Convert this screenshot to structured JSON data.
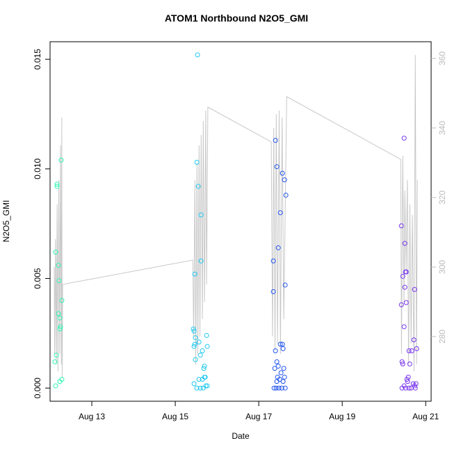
{
  "chart_data": {
    "type": "scatter",
    "title": "ATOM1 Northbound N2O5_GMI",
    "xlabel": "Date",
    "ylabel": "N2O5_GMI",
    "xlim": [
      12.0,
      21.13
    ],
    "xticks": [
      {
        "value": 13,
        "label": "Aug 13"
      },
      {
        "value": 15,
        "label": "Aug 15"
      },
      {
        "value": 17,
        "label": "Aug 17"
      },
      {
        "value": 19,
        "label": "Aug 19"
      },
      {
        "value": 21,
        "label": "Aug 21"
      }
    ],
    "ylim": [
      -0.0006,
      0.0158
    ],
    "yticks": [
      {
        "value": 0,
        "label": "0.000"
      },
      0.005,
      {
        "value": 0.01,
        "label": "0.010"
      },
      0.015
    ],
    "y2lim": [
      261.4,
      364.8
    ],
    "y2ticks": [
      280,
      300,
      320,
      340,
      360
    ],
    "series": [
      {
        "type": "line",
        "axis": "y2",
        "color": "#c8c8c8",
        "x": [
          12.1,
          12.11,
          12.13,
          12.15,
          12.17,
          12.19,
          12.21,
          12.23,
          12.25,
          12.27,
          12.28,
          12.29,
          12.3,
          15.42,
          15.44,
          15.47,
          15.49,
          15.52,
          15.54,
          15.57,
          15.59,
          15.62,
          15.65,
          15.67,
          15.7,
          15.73,
          15.75,
          15.78,
          17.3,
          17.33,
          17.36,
          17.39,
          17.42,
          17.45,
          17.49,
          17.52,
          17.56,
          17.6,
          17.67,
          20.4,
          20.42,
          20.45,
          20.48,
          20.5,
          20.53,
          20.56,
          20.59,
          20.62,
          20.65,
          20.68,
          20.72,
          20.75,
          20.78,
          20.8
        ],
        "values": [
          300,
          275,
          308,
          272,
          318,
          270,
          325,
          275,
          335,
          272,
          343,
          268,
          295,
          302,
          280,
          325,
          272,
          330,
          275,
          335,
          280,
          338,
          285,
          342,
          290,
          345,
          295,
          346,
          336,
          280,
          340,
          276,
          344,
          278,
          345,
          275,
          343,
          285,
          349,
          331,
          275,
          332,
          290,
          322,
          298,
          325,
          272,
          318,
          278,
          315,
          270,
          361,
          272,
          325
        ]
      },
      {
        "type": "points",
        "color": "#2ef5b4",
        "x": [
          12.133,
          12.117,
          12.15,
          12.133,
          12.167,
          12.167,
          12.2,
          12.217,
          12.2,
          12.233,
          12.25,
          12.233,
          12.283,
          12.267,
          12.283,
          12.233
        ],
        "values": [
          0.0001,
          0.0012,
          0.0015,
          0.0062,
          0.0093,
          0.0092,
          0.0056,
          0.0049,
          0.0034,
          0.0032,
          0.0028,
          0.0027,
          0.004,
          0.0104,
          0.0004,
          0.0003
        ]
      },
      {
        "type": "points",
        "color": "#1ec8f0",
        "x": [
          15.533,
          15.517,
          15.55,
          15.617,
          15.617,
          15.467,
          15.433,
          15.45,
          15.483,
          15.467,
          15.45,
          15.567,
          15.75,
          15.767,
          15.65,
          15.6,
          15.483,
          15.7,
          15.683,
          15.567,
          15.65,
          15.7,
          15.45,
          15.517,
          15.6,
          15.733,
          15.667,
          15.767,
          15.717
        ],
        "values": [
          0.0152,
          0.0103,
          0.0092,
          0.0079,
          0.0058,
          0.0052,
          0.0027,
          0.0026,
          0.0023,
          0.002,
          0.0019,
          0.0021,
          0.0024,
          0.0019,
          0.0017,
          0.0015,
          0.0013,
          0.001,
          0.0009,
          0.0004,
          0.0004,
          0.0005,
          0.0002,
          0,
          0,
          0.0001,
          0,
          0.0001,
          0.0005
        ]
      },
      {
        "type": "points",
        "color": "#2255ee",
        "x": [
          17.4,
          17.433,
          17.567,
          17.617,
          17.65,
          17.517,
          17.467,
          17.35,
          17.633,
          17.35,
          17.517,
          17.567,
          17.583,
          17.4,
          17.433,
          17.467,
          17.383,
          17.6,
          17.533,
          17.45,
          17.5,
          17.617,
          17.433,
          17.367,
          17.417,
          17.483,
          17.55,
          17.633,
          17.583
        ],
        "values": [
          0.0113,
          0.0101,
          0.0098,
          0.0095,
          0.0088,
          0.008,
          0.0064,
          0.0058,
          0.0047,
          0.0044,
          0.002,
          0.002,
          0.0018,
          0.0017,
          0.0012,
          0.001,
          0.0009,
          0.0009,
          0.0007,
          0.0005,
          0.0004,
          0.0005,
          0.0003,
          0,
          0,
          0,
          0,
          0,
          0.0003
        ]
      },
      {
        "type": "points",
        "color": "#7733ee",
        "x": [
          20.483,
          20.417,
          20.5,
          20.533,
          20.517,
          20.45,
          20.5,
          20.533,
          20.417,
          20.733,
          20.483,
          20.717,
          20.783,
          20.6,
          20.667,
          20.433,
          20.45,
          20.617,
          20.583,
          20.55,
          20.567,
          20.7,
          20.733,
          20.767,
          20.483,
          20.433,
          20.517,
          20.6,
          20.65,
          20.75
        ],
        "values": [
          0.0114,
          0.0074,
          0.0066,
          0.0053,
          0.0053,
          0.0051,
          0.0046,
          0.0039,
          0.0038,
          0.0045,
          0.0028,
          0.0022,
          0.0018,
          0.0017,
          0.0017,
          0.0012,
          0.0011,
          0.0011,
          0.0005,
          0.0004,
          0.0003,
          0.0002,
          0.0001,
          0.0002,
          0.0001,
          0,
          0,
          0,
          0,
          0
        ]
      }
    ]
  }
}
